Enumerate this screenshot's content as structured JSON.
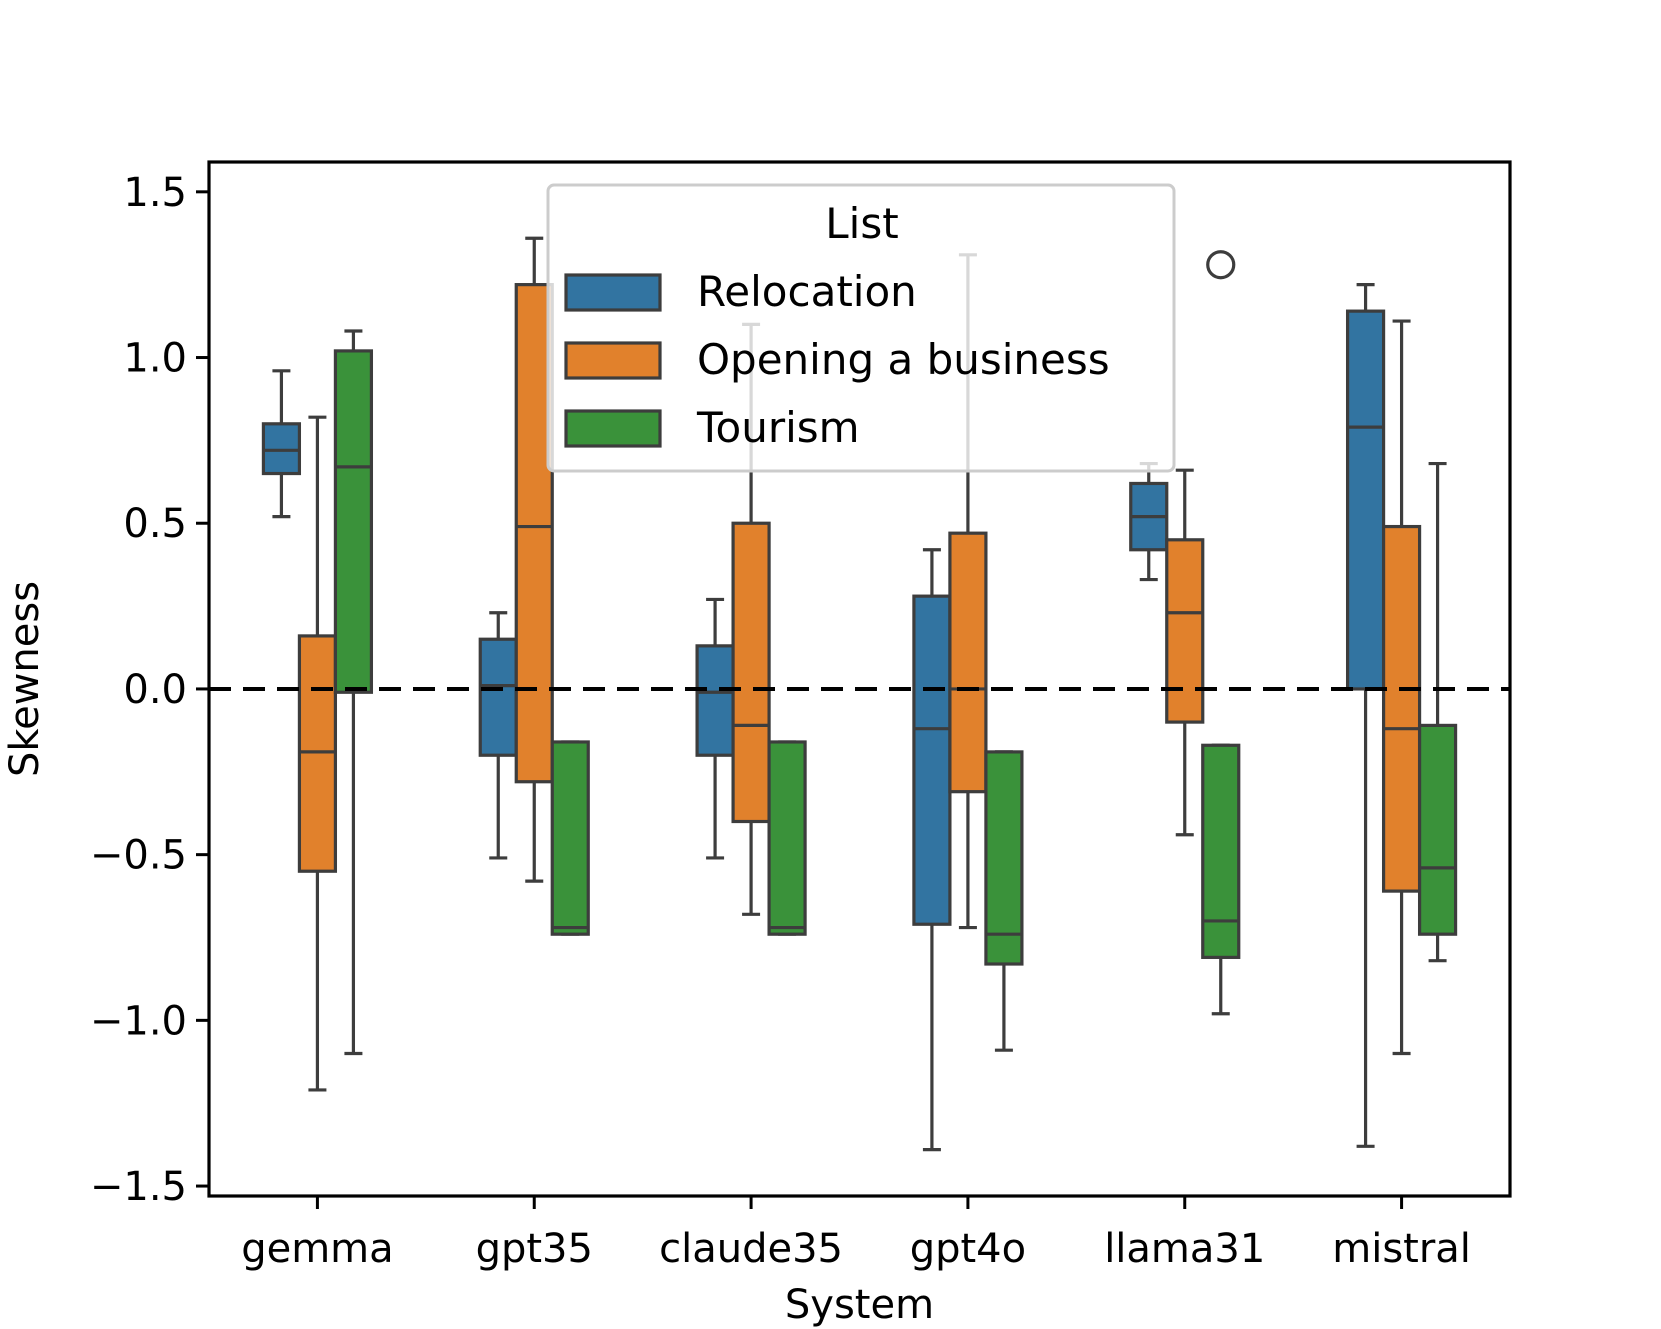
{
  "chart_data": {
    "type": "boxplot",
    "title": "",
    "xlabel": "System",
    "ylabel": "Skewness",
    "ylim": [
      -1.53,
      1.59
    ],
    "yticks": [
      1.5,
      1.0,
      0.5,
      0.0,
      -0.5,
      -1.0,
      -1.5
    ],
    "ytick_labels": [
      "1.5",
      "1.0",
      "0.5",
      "0.0",
      "−0.5",
      "−1.0",
      "−1.5"
    ],
    "categories": [
      "gemma",
      "gpt35",
      "claude35",
      "gpt4o",
      "llama31",
      "mistral"
    ],
    "reference_line": {
      "y": 0.0,
      "style": "dashed",
      "color": "#000000"
    },
    "legend": {
      "title": "List",
      "location": "upper center"
    },
    "series": [
      {
        "name": "Relocation",
        "color": "#3274a1",
        "boxes": [
          {
            "whislo": 0.52,
            "q1": 0.65,
            "med": 0.72,
            "q3": 0.8,
            "whishi": 0.96,
            "fliers": []
          },
          {
            "whislo": -0.51,
            "q1": -0.2,
            "med": 0.01,
            "q3": 0.15,
            "whishi": 0.23,
            "fliers": []
          },
          {
            "whislo": -0.51,
            "q1": -0.2,
            "med": -0.01,
            "q3": 0.13,
            "whishi": 0.27,
            "fliers": []
          },
          {
            "whislo": -1.39,
            "q1": -0.71,
            "med": -0.12,
            "q3": 0.28,
            "whishi": 0.42,
            "fliers": []
          },
          {
            "whislo": 0.33,
            "q1": 0.42,
            "med": 0.52,
            "q3": 0.62,
            "whishi": 0.68,
            "fliers": []
          },
          {
            "whislo": -1.38,
            "q1": 0.0,
            "med": 0.79,
            "q3": 1.14,
            "whishi": 1.22,
            "fliers": []
          }
        ]
      },
      {
        "name": "Opening a business",
        "color": "#e1812c",
        "boxes": [
          {
            "whislo": -1.21,
            "q1": -0.55,
            "med": -0.19,
            "q3": 0.16,
            "whishi": 0.82,
            "fliers": []
          },
          {
            "whislo": -0.58,
            "q1": -0.28,
            "med": 0.49,
            "q3": 1.22,
            "whishi": 1.36,
            "fliers": []
          },
          {
            "whislo": -0.68,
            "q1": -0.4,
            "med": -0.11,
            "q3": 0.5,
            "whishi": 1.1,
            "fliers": []
          },
          {
            "whislo": -0.72,
            "q1": -0.31,
            "med": 0.0,
            "q3": 0.47,
            "whishi": 1.31,
            "fliers": []
          },
          {
            "whislo": -0.44,
            "q1": -0.1,
            "med": 0.23,
            "q3": 0.45,
            "whishi": 0.66,
            "fliers": []
          },
          {
            "whislo": -1.1,
            "q1": -0.61,
            "med": -0.12,
            "q3": 0.49,
            "whishi": 1.11,
            "fliers": []
          }
        ]
      },
      {
        "name": "Tourism",
        "color": "#3a923a",
        "boxes": [
          {
            "whislo": -1.1,
            "q1": -0.01,
            "med": 0.67,
            "q3": 1.02,
            "whishi": 1.08,
            "fliers": []
          },
          {
            "whislo": -0.74,
            "q1": -0.74,
            "med": -0.72,
            "q3": -0.16,
            "whishi": -0.16,
            "fliers": []
          },
          {
            "whislo": -0.74,
            "q1": -0.74,
            "med": -0.72,
            "q3": -0.16,
            "whishi": -0.16,
            "fliers": []
          },
          {
            "whislo": -1.09,
            "q1": -0.83,
            "med": -0.74,
            "q3": -0.19,
            "whishi": -0.19,
            "fliers": []
          },
          {
            "whislo": -0.98,
            "q1": -0.81,
            "med": -0.7,
            "q3": -0.17,
            "whishi": -0.17,
            "fliers": [
              1.28
            ]
          },
          {
            "whislo": -0.82,
            "q1": -0.74,
            "med": -0.54,
            "q3": -0.11,
            "whishi": 0.68,
            "fliers": []
          }
        ]
      }
    ]
  }
}
